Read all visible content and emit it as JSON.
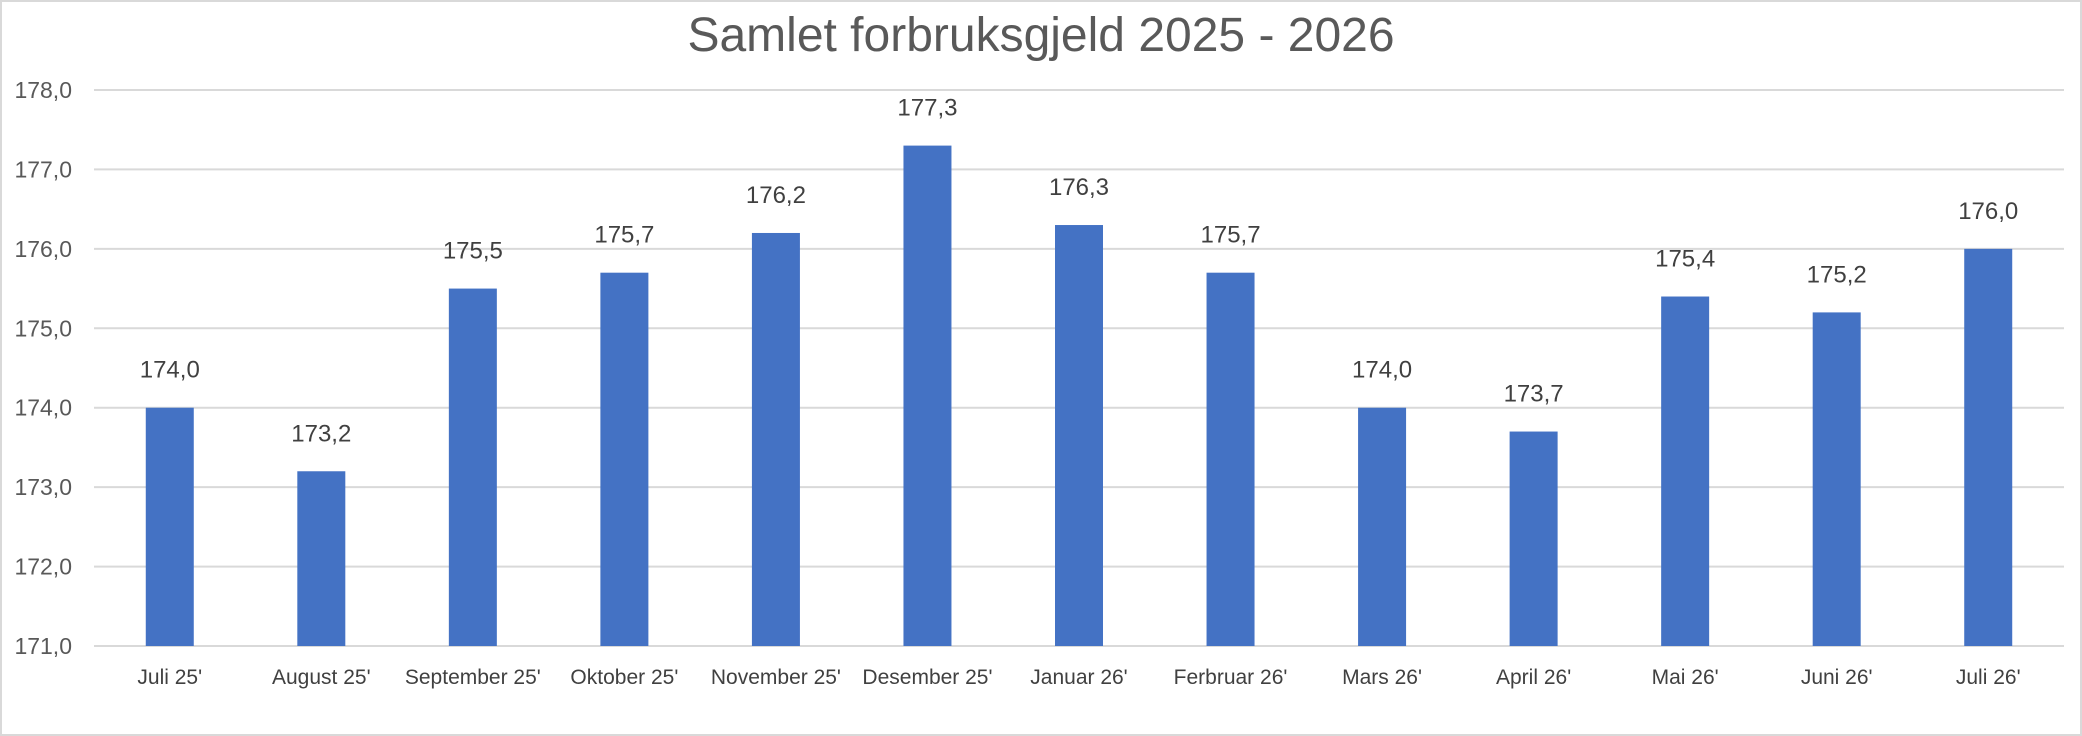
{
  "colors": {
    "bar": "#4472c4",
    "grid": "#d9d9d9",
    "frame": "#d9d9d9"
  },
  "chart_data": {
    "type": "bar",
    "title": "Samlet forbruksgjeld 2025 - 2026",
    "xlabel": "",
    "ylabel": "",
    "ylim": [
      171.0,
      178.0
    ],
    "yticks": [
      "171,0",
      "172,0",
      "173,0",
      "174,0",
      "175,0",
      "176,0",
      "177,0",
      "178,0"
    ],
    "grid": true,
    "legend": "none",
    "categories": [
      "Juli 25'",
      "August 25'",
      "September 25'",
      "Oktober 25'",
      "November 25'",
      "Desember 25'",
      "Januar 26'",
      "Ferbruar 26'",
      "Mars 26'",
      "April 26'",
      "Mai 26'",
      "Juni 26'",
      "Juli 26'"
    ],
    "values": [
      174.0,
      173.2,
      175.5,
      175.7,
      176.2,
      177.3,
      176.3,
      175.7,
      174.0,
      173.7,
      175.4,
      175.2,
      176.0
    ],
    "data_labels": [
      "174,0",
      "173,2",
      "175,5",
      "175,7",
      "176,2",
      "177,3",
      "176,3",
      "175,7",
      "174,0",
      "173,7",
      "175,4",
      "175,2",
      "176,0"
    ]
  }
}
